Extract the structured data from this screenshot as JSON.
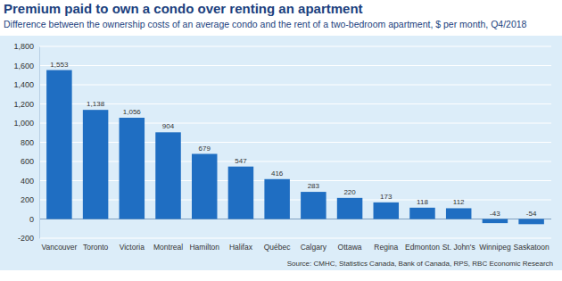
{
  "chart_data": {
    "type": "bar",
    "title": "Premium paid to own a condo over renting an apartment",
    "subtitle": "Difference between the ownership costs of an average condo and the rent of a two-bedroom apartment, $ per month, Q4/2018",
    "source": "Source: CMHC, Statistics Canada, Bank of Canada, RPS, RBC Economic Research",
    "categories": [
      "Vancouver",
      "Toronto",
      "Victoria",
      "Montreal",
      "Hamilton",
      "Halifax",
      "Québec",
      "Calgary",
      "Ottawa",
      "Regina",
      "Edmonton",
      "St. John's",
      "Winnipeg",
      "Saskatoon"
    ],
    "values": [
      1553,
      1138,
      1056,
      904,
      679,
      547,
      416,
      283,
      220,
      173,
      118,
      112,
      -43,
      -54
    ],
    "value_labels": [
      "1,553",
      "1,138",
      "1,056",
      "904",
      "679",
      "547",
      "416",
      "283",
      "220",
      "173",
      "118",
      "112",
      "-43",
      "-54"
    ],
    "color": "#1f6ec2",
    "ylim": [
      -200,
      1800
    ],
    "yticks": [
      -200,
      0,
      200,
      400,
      600,
      800,
      {
        "value": 1000,
        "label": "1,000"
      },
      {
        "value": 1200,
        "label": "1,200"
      },
      {
        "value": 1400,
        "label": "1,400"
      },
      {
        "value": 1600,
        "label": "1,600"
      },
      {
        "value": 1800,
        "label": "1,800"
      }
    ],
    "grid": true,
    "data_labels": true
  }
}
